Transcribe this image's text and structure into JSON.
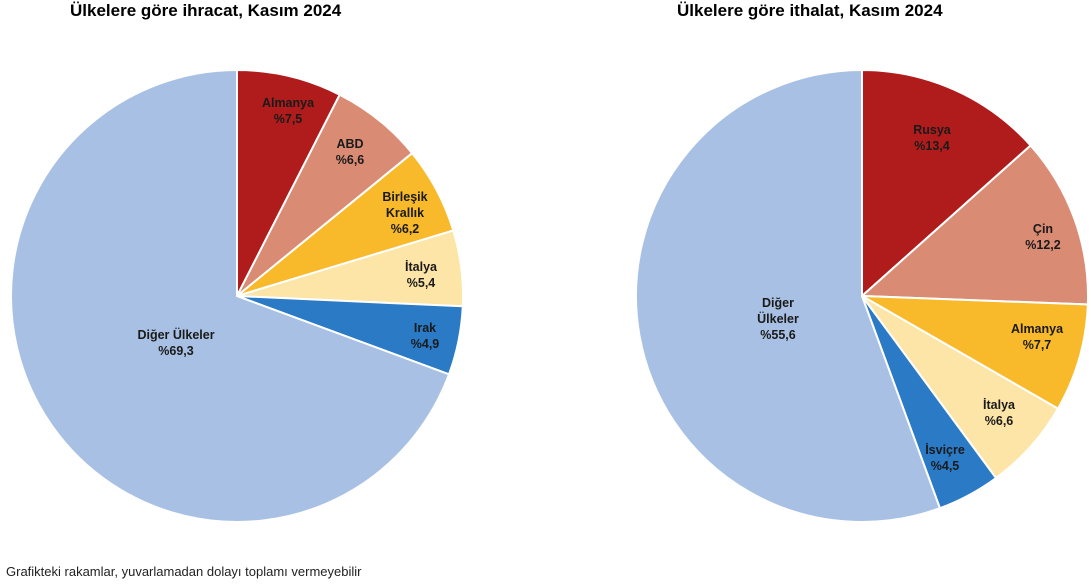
{
  "chart_data": [
    {
      "type": "pie",
      "title": "Ülkelere göre ihracat, Kasım 2024",
      "slices": [
        {
          "label": [
            "Almanya"
          ],
          "value": 7.5,
          "value_label": "%7,5",
          "color": "#b01c1c"
        },
        {
          "label": [
            "ABD"
          ],
          "value": 6.6,
          "value_label": "%6,6",
          "color": "#d98b74"
        },
        {
          "label": [
            "Birleşik",
            "Krallık"
          ],
          "value": 6.2,
          "value_label": "%6,2",
          "color": "#f8b92a"
        },
        {
          "label": [
            "İtalya"
          ],
          "value": 5.4,
          "value_label": "%5,4",
          "color": "#fde4a7"
        },
        {
          "label": [
            "Irak"
          ],
          "value": 4.9,
          "value_label": "%4,9",
          "color": "#2a7ac6"
        },
        {
          "label": [
            "Diğer Ülkeler"
          ],
          "value": 69.3,
          "value_label": "%69,3",
          "color": "#a8c0e4"
        }
      ]
    },
    {
      "type": "pie",
      "title": "Ülkelere göre ithalat, Kasım 2024",
      "slices": [
        {
          "label": [
            "Rusya"
          ],
          "value": 13.4,
          "value_label": "%13,4",
          "color": "#b01c1c"
        },
        {
          "label": [
            "Çin"
          ],
          "value": 12.2,
          "value_label": "%12,2",
          "color": "#d98b74"
        },
        {
          "label": [
            "Almanya"
          ],
          "value": 7.7,
          "value_label": "%7,7",
          "color": "#f8b92a"
        },
        {
          "label": [
            "İtalya"
          ],
          "value": 6.6,
          "value_label": "%6,6",
          "color": "#fde4a7"
        },
        {
          "label": [
            "İsviçre"
          ],
          "value": 4.5,
          "value_label": "%4,5",
          "color": "#2a7ac6"
        },
        {
          "label": [
            "Diğer",
            "Ülkeler"
          ],
          "value": 55.6,
          "value_label": "%55,6",
          "color": "#a8c0e4"
        }
      ]
    }
  ],
  "footnote": "Grafikteki rakamlar, yuvarlamadan dolayı toplamı vermeyebilir"
}
